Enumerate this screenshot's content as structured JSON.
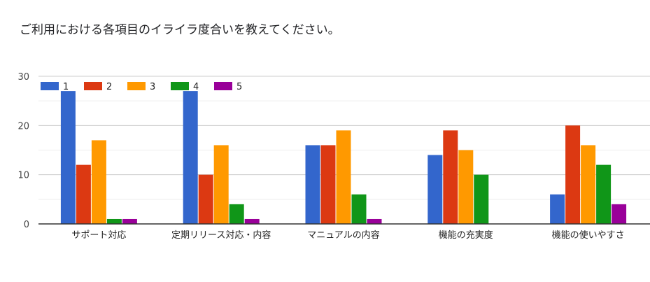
{
  "chart_data": {
    "type": "bar",
    "title": "ご利用における各項目のイライラ度合いを教えてください。",
    "xlabel": "",
    "ylabel": "",
    "ylim": [
      0,
      30
    ],
    "yticks": [
      0,
      10,
      20,
      30
    ],
    "grid": true,
    "legend_position": "top-left",
    "categories": [
      "サポート対応",
      "定期リリース対応・内容",
      "マニュアルの内容",
      "機能の充実度",
      "機能の使いやすさ"
    ],
    "series": [
      {
        "name": "1",
        "color": "#3366cc",
        "values": [
          27,
          27,
          16,
          14,
          6
        ]
      },
      {
        "name": "2",
        "color": "#dc3912",
        "values": [
          12,
          10,
          16,
          19,
          20
        ]
      },
      {
        "name": "3",
        "color": "#ff9900",
        "values": [
          17,
          16,
          19,
          15,
          16
        ]
      },
      {
        "name": "4",
        "color": "#109618",
        "values": [
          1,
          4,
          6,
          10,
          12
        ]
      },
      {
        "name": "5",
        "color": "#990099",
        "values": [
          1,
          1,
          1,
          0,
          4
        ]
      }
    ]
  }
}
